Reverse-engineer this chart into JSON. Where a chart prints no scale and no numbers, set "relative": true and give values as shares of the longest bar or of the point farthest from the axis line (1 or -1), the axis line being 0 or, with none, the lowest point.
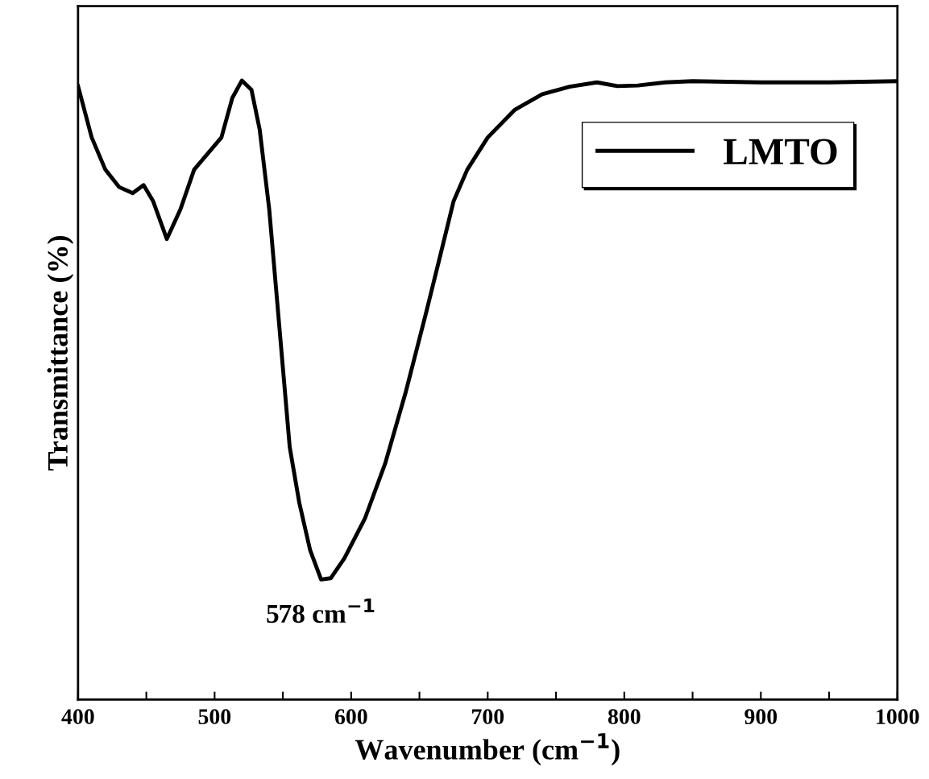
{
  "chart_data": {
    "type": "line",
    "relative": true,
    "xlabel": "Wavenumber (cm$^{−1}$)",
    "ylabel": "Transmittance (%)",
    "x": [
      400,
      410,
      420,
      430,
      440,
      448,
      455,
      465,
      475,
      485,
      495,
      505,
      513,
      520,
      527,
      533,
      540,
      545,
      550,
      555,
      562,
      570,
      578,
      585,
      595,
      610,
      625,
      640,
      655,
      665,
      675,
      685,
      700,
      720,
      740,
      760,
      780,
      795,
      810,
      830,
      850,
      900,
      950,
      1000
    ],
    "series": [
      {
        "name": "LMTO",
        "color": "#000000",
        "values": [
          0.991,
          0.908,
          0.856,
          0.828,
          0.818,
          0.831,
          0.805,
          0.744,
          0.792,
          0.856,
          0.882,
          0.908,
          0.972,
          1.0,
          0.985,
          0.921,
          0.792,
          0.664,
          0.536,
          0.408,
          0.318,
          0.241,
          0.194,
          0.196,
          0.228,
          0.292,
          0.382,
          0.497,
          0.626,
          0.715,
          0.805,
          0.856,
          0.908,
          0.953,
          0.978,
          0.99,
          0.997,
          0.991,
          0.992,
          0.997,
          0.999,
          0.997,
          0.997,
          0.999
        ]
      }
    ],
    "xlim": [
      400,
      1000
    ],
    "xticks": [
      400,
      {
        "value": 450,
        "label": null
      },
      500,
      {
        "value": 550,
        "label": null
      },
      600,
      {
        "value": 650,
        "label": null
      },
      700,
      {
        "value": 750,
        "label": null
      },
      800,
      {
        "value": 850,
        "label": null
      },
      900,
      {
        "value": 950,
        "label": null
      },
      1000
    ],
    "annotations": [
      {
        "text": "578 cm$^{−1}$",
        "x": 578,
        "y": 0.194
      }
    ],
    "legend": "top right",
    "grid": false,
    "marker": "none",
    "line_style": "solid"
  }
}
